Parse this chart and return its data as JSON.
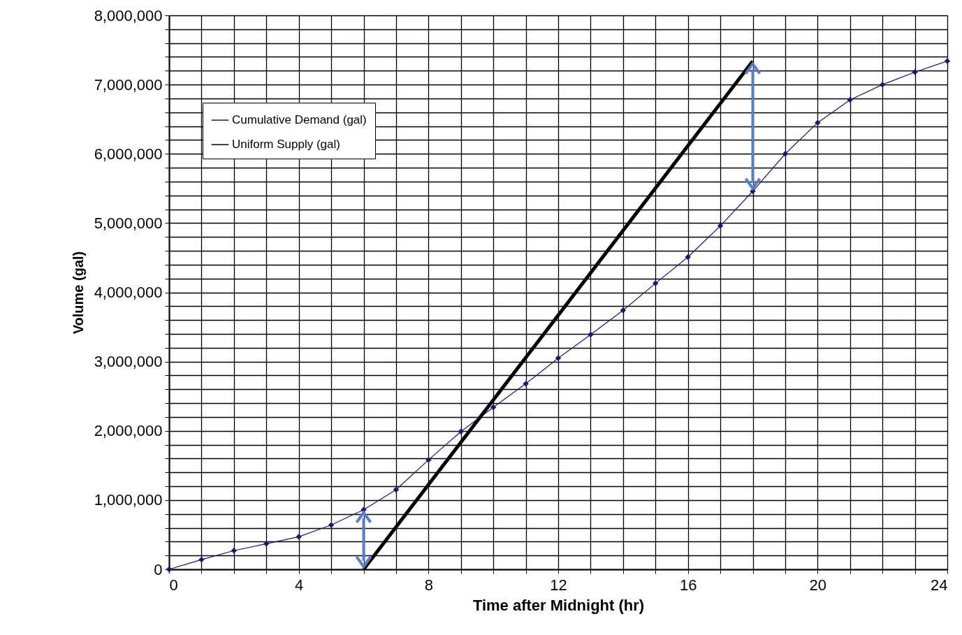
{
  "chart_data": {
    "type": "line",
    "xlabel": "Time after Midnight (hr)",
    "ylabel": "Volume (gal)",
    "xlim": [
      0,
      24
    ],
    "ylim": [
      0,
      8000000
    ],
    "xticks": [
      0,
      {
        "value": 1,
        "label": null
      },
      {
        "value": 2,
        "label": null
      },
      {
        "value": 3,
        "label": null
      },
      4,
      {
        "value": 5,
        "label": null
      },
      {
        "value": 6,
        "label": null
      },
      {
        "value": 7,
        "label": null
      },
      8,
      {
        "value": 9,
        "label": null
      },
      {
        "value": 10,
        "label": null
      },
      {
        "value": 11,
        "label": null
      },
      12,
      {
        "value": 13,
        "label": null
      },
      {
        "value": 14,
        "label": null
      },
      {
        "value": 15,
        "label": null
      },
      16,
      {
        "value": 17,
        "label": null
      },
      {
        "value": 18,
        "label": null
      },
      {
        "value": 19,
        "label": null
      },
      20,
      {
        "value": 21,
        "label": null
      },
      {
        "value": 22,
        "label": null
      },
      {
        "value": 23,
        "label": null
      },
      24
    ],
    "yticks": [
      {
        "value": 0,
        "label": "0"
      },
      {
        "value": 200000,
        "label": null
      },
      {
        "value": 400000,
        "label": null
      },
      {
        "value": 600000,
        "label": null
      },
      {
        "value": 800000,
        "label": null
      },
      {
        "value": 1000000,
        "label": "1,000,000"
      },
      {
        "value": 1200000,
        "label": null
      },
      {
        "value": 1400000,
        "label": null
      },
      {
        "value": 1600000,
        "label": null
      },
      {
        "value": 1800000,
        "label": null
      },
      {
        "value": 2000000,
        "label": "2,000,000"
      },
      {
        "value": 2200000,
        "label": null
      },
      {
        "value": 2400000,
        "label": null
      },
      {
        "value": 2600000,
        "label": null
      },
      {
        "value": 2800000,
        "label": null
      },
      {
        "value": 3000000,
        "label": "3,000,000"
      },
      {
        "value": 3200000,
        "label": null
      },
      {
        "value": 3400000,
        "label": null
      },
      {
        "value": 3600000,
        "label": null
      },
      {
        "value": 3800000,
        "label": null
      },
      {
        "value": 4000000,
        "label": "4,000,000"
      },
      {
        "value": 4200000,
        "label": null
      },
      {
        "value": 4400000,
        "label": null
      },
      {
        "value": 4600000,
        "label": null
      },
      {
        "value": 4800000,
        "label": null
      },
      {
        "value": 5000000,
        "label": "5,000,000"
      },
      {
        "value": 5200000,
        "label": null
      },
      {
        "value": 5400000,
        "label": null
      },
      {
        "value": 5600000,
        "label": null
      },
      {
        "value": 5800000,
        "label": null
      },
      {
        "value": 6000000,
        "label": "6,000,000"
      },
      {
        "value": 6200000,
        "label": null
      },
      {
        "value": 6400000,
        "label": null
      },
      {
        "value": 6600000,
        "label": null
      },
      {
        "value": 6800000,
        "label": null
      },
      {
        "value": 7000000,
        "label": "7,000,000"
      },
      {
        "value": 7200000,
        "label": null
      },
      {
        "value": 7400000,
        "label": null
      },
      {
        "value": 7600000,
        "label": null
      },
      {
        "value": 7800000,
        "label": null
      },
      {
        "value": 8000000,
        "label": "8,000,000"
      }
    ],
    "grid": true,
    "legend": "top left",
    "marker": "diamond",
    "series": [
      {
        "name": "Cumulative Demand (gal)",
        "color": "#1a1870",
        "x": [
          0,
          1,
          2,
          3,
          4,
          5,
          6,
          7,
          8,
          9,
          10,
          11,
          12,
          13,
          14,
          15,
          16,
          17,
          18,
          19,
          20,
          21,
          22,
          23,
          24
        ],
        "values": [
          0,
          140000,
          270000,
          370000,
          470000,
          640000,
          860000,
          1150000,
          1580000,
          1990000,
          2340000,
          2680000,
          3050000,
          3390000,
          3740000,
          4130000,
          4510000,
          4960000,
          5460000,
          6000000,
          6450000,
          6780000,
          7000000,
          7180000,
          7340000
        ]
      },
      {
        "name": "Uniform Supply (gal)",
        "color": "#000000",
        "marker": "none",
        "x": [
          6,
          18
        ],
        "values": [
          0,
          7340000
        ]
      }
    ]
  }
}
